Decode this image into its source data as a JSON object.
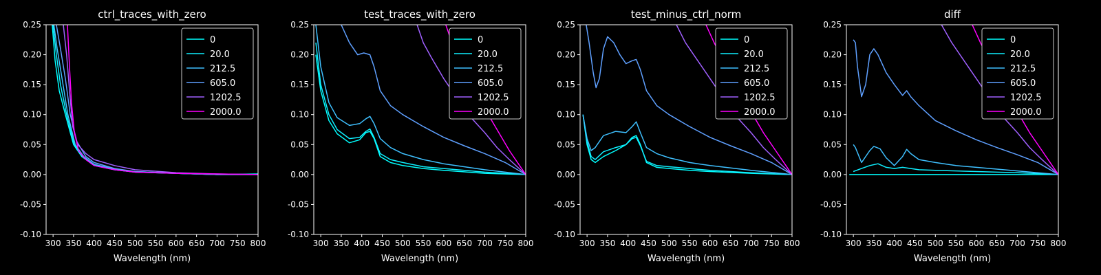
{
  "chart_data": [
    {
      "type": "line",
      "title": "ctrl_traces_with_zero",
      "xlabel": "Wavelength (nm)",
      "ylabel": "",
      "xlim": [
        283,
        800
      ],
      "ylim": [
        -0.1,
        0.25
      ],
      "xticks": [
        300,
        350,
        400,
        450,
        500,
        550,
        600,
        650,
        700,
        750,
        800
      ],
      "yticks": [
        -0.1,
        -0.05,
        0.0,
        0.05,
        0.1,
        0.15,
        0.2,
        0.25
      ],
      "legend_position": "top-right",
      "series": [
        {
          "name": "0",
          "color": "#00ffff",
          "x": [
            298,
            305,
            315,
            330,
            350,
            370,
            400,
            450,
            500,
            600,
            700,
            800
          ],
          "y": [
            0.25,
            0.19,
            0.14,
            0.1,
            0.05,
            0.03,
            0.015,
            0.008,
            0.004,
            0.002,
            0.0,
            0.001
          ]
        },
        {
          "name": "20.0",
          "color": "#0fefff",
          "x": [
            300,
            308,
            318,
            333,
            352,
            372,
            400,
            450,
            500,
            600,
            700,
            800
          ],
          "y": [
            0.25,
            0.2,
            0.15,
            0.1,
            0.05,
            0.03,
            0.016,
            0.008,
            0.004,
            0.002,
            0.0,
            0.0
          ]
        },
        {
          "name": "212.5",
          "color": "#3fc0ff",
          "x": [
            302,
            310,
            322,
            336,
            354,
            375,
            400,
            450,
            500,
            600,
            700,
            800
          ],
          "y": [
            0.25,
            0.21,
            0.16,
            0.1,
            0.05,
            0.03,
            0.017,
            0.009,
            0.005,
            0.002,
            0.0,
            0.0
          ]
        },
        {
          "name": "605.0",
          "color": "#5fa0ff",
          "x": [
            308,
            318,
            330,
            342,
            358,
            380,
            400,
            450,
            500,
            600,
            700,
            800
          ],
          "y": [
            0.25,
            0.21,
            0.16,
            0.1,
            0.055,
            0.03,
            0.02,
            0.01,
            0.005,
            0.002,
            0.0,
            0.0
          ]
        },
        {
          "name": "1202.5",
          "color": "#a060ff",
          "x": [
            325,
            333,
            340,
            348,
            360,
            380,
            400,
            450,
            500,
            600,
            700,
            800
          ],
          "y": [
            0.25,
            0.2,
            0.14,
            0.08,
            0.05,
            0.035,
            0.025,
            0.015,
            0.008,
            0.003,
            0.001,
            0.0
          ]
        },
        {
          "name": "2000.0",
          "color": "#ff00ff",
          "x": [
            335,
            340,
            345,
            352,
            362,
            380,
            400,
            450,
            500,
            600,
            700,
            800
          ],
          "y": [
            0.25,
            0.18,
            0.12,
            0.07,
            0.04,
            0.025,
            0.015,
            0.008,
            0.004,
            0.002,
            0.001,
            0.0
          ]
        }
      ]
    },
    {
      "type": "line",
      "title": "test_traces_with_zero",
      "xlabel": "Wavelength (nm)",
      "ylabel": "",
      "xlim": [
        283,
        800
      ],
      "ylim": [
        -0.1,
        0.25
      ],
      "xticks": [
        300,
        350,
        400,
        450,
        500,
        550,
        600,
        650,
        700,
        750,
        800
      ],
      "yticks": [
        -0.1,
        -0.05,
        0.0,
        0.05,
        0.1,
        0.15,
        0.2,
        0.25
      ],
      "legend_position": "top-right",
      "series": [
        {
          "name": "0",
          "color": "#00ffff",
          "x": [
            288,
            300,
            320,
            340,
            370,
            395,
            410,
            420,
            430,
            445,
            470,
            500,
            550,
            600,
            700,
            800
          ],
          "y": [
            0.2,
            0.14,
            0.09,
            0.068,
            0.053,
            0.058,
            0.07,
            0.072,
            0.06,
            0.03,
            0.02,
            0.015,
            0.01,
            0.007,
            0.002,
            0.0
          ]
        },
        {
          "name": "20.0",
          "color": "#0fefff",
          "x": [
            288,
            300,
            320,
            340,
            370,
            395,
            410,
            420,
            430,
            445,
            470,
            500,
            550,
            600,
            700,
            800
          ],
          "y": [
            0.22,
            0.15,
            0.1,
            0.075,
            0.06,
            0.062,
            0.072,
            0.076,
            0.062,
            0.035,
            0.025,
            0.02,
            0.013,
            0.01,
            0.004,
            0.0
          ]
        },
        {
          "name": "212.5",
          "color": "#3fc0ff",
          "x": [
            288,
            300,
            320,
            340,
            370,
            395,
            410,
            420,
            430,
            445,
            470,
            500,
            550,
            600,
            700,
            800
          ],
          "y": [
            0.25,
            0.18,
            0.12,
            0.095,
            0.082,
            0.085,
            0.093,
            0.097,
            0.085,
            0.06,
            0.045,
            0.035,
            0.025,
            0.018,
            0.008,
            0.0
          ]
        },
        {
          "name": "605.0",
          "color": "#5fa0ff",
          "x": [
            350,
            370,
            390,
            405,
            420,
            430,
            445,
            470,
            500,
            550,
            600,
            650,
            700,
            750,
            800
          ],
          "y": [
            0.25,
            0.22,
            0.2,
            0.203,
            0.2,
            0.18,
            0.14,
            0.115,
            0.1,
            0.08,
            0.062,
            0.048,
            0.035,
            0.02,
            0.0
          ]
        },
        {
          "name": "1202.5",
          "color": "#a060ff",
          "x": [
            535,
            550,
            570,
            600,
            630,
            660,
            700,
            730,
            760,
            800
          ],
          "y": [
            0.25,
            0.22,
            0.195,
            0.16,
            0.13,
            0.1,
            0.07,
            0.045,
            0.025,
            0.0
          ]
        },
        {
          "name": "2000.0",
          "color": "#ff00ff",
          "x": [
            605,
            620,
            650,
            680,
            700,
            730,
            760,
            780,
            800
          ],
          "y": [
            0.25,
            0.22,
            0.18,
            0.14,
            0.11,
            0.075,
            0.04,
            0.02,
            0.0
          ]
        }
      ]
    },
    {
      "type": "line",
      "title": "test_minus_ctrl_norm",
      "xlabel": "Wavelength (nm)",
      "ylabel": "",
      "xlim": [
        283,
        800
      ],
      "ylim": [
        -0.1,
        0.25
      ],
      "xticks": [
        300,
        350,
        400,
        450,
        500,
        550,
        600,
        650,
        700,
        750,
        800
      ],
      "yticks": [
        -0.1,
        -0.05,
        0.0,
        0.05,
        0.1,
        0.15,
        0.2,
        0.25
      ],
      "legend_position": "top-right",
      "series": [
        {
          "name": "0",
          "color": "#00ffff",
          "x": [
            290,
            300,
            310,
            320,
            340,
            370,
            395,
            410,
            420,
            430,
            445,
            470,
            500,
            550,
            600,
            700,
            800
          ],
          "y": [
            0.1,
            0.05,
            0.025,
            0.02,
            0.03,
            0.04,
            0.05,
            0.062,
            0.065,
            0.05,
            0.02,
            0.012,
            0.01,
            0.007,
            0.005,
            0.002,
            0.0
          ]
        },
        {
          "name": "20.0",
          "color": "#0fefff",
          "x": [
            290,
            300,
            310,
            320,
            340,
            370,
            395,
            410,
            420,
            430,
            445,
            470,
            500,
            550,
            600,
            700,
            800
          ],
          "y": [
            0.1,
            0.055,
            0.03,
            0.025,
            0.038,
            0.045,
            0.05,
            0.06,
            0.062,
            0.048,
            0.022,
            0.015,
            0.013,
            0.01,
            0.007,
            0.003,
            0.0
          ]
        },
        {
          "name": "212.5",
          "color": "#3fc0ff",
          "x": [
            290,
            300,
            310,
            320,
            340,
            370,
            395,
            410,
            420,
            430,
            445,
            470,
            500,
            550,
            600,
            700,
            800
          ],
          "y": [
            0.1,
            0.06,
            0.04,
            0.045,
            0.065,
            0.072,
            0.07,
            0.08,
            0.088,
            0.07,
            0.045,
            0.035,
            0.028,
            0.02,
            0.015,
            0.007,
            0.0
          ]
        },
        {
          "name": "605.0",
          "color": "#5fa0ff",
          "x": [
            298,
            305,
            315,
            322,
            330,
            340,
            350,
            365,
            380,
            395,
            410,
            420,
            430,
            445,
            470,
            500,
            550,
            600,
            650,
            700,
            750,
            800
          ],
          "y": [
            0.25,
            0.22,
            0.17,
            0.145,
            0.16,
            0.21,
            0.23,
            0.22,
            0.2,
            0.185,
            0.19,
            0.192,
            0.175,
            0.14,
            0.115,
            0.1,
            0.08,
            0.062,
            0.048,
            0.035,
            0.02,
            0.0
          ]
        },
        {
          "name": "1202.5",
          "color": "#a060ff",
          "x": [
            518,
            540,
            570,
            600,
            630,
            660,
            700,
            730,
            760,
            800
          ],
          "y": [
            0.25,
            0.22,
            0.19,
            0.16,
            0.13,
            0.1,
            0.07,
            0.045,
            0.025,
            0.0
          ]
        },
        {
          "name": "2000.0",
          "color": "#ff00ff",
          "x": [
            590,
            610,
            640,
            670,
            700,
            730,
            760,
            780,
            800
          ],
          "y": [
            0.25,
            0.22,
            0.18,
            0.14,
            0.105,
            0.07,
            0.04,
            0.02,
            0.0
          ]
        }
      ]
    },
    {
      "type": "line",
      "title": "diff",
      "xlabel": "Wavelength (nm)",
      "ylabel": "",
      "xlim": [
        283,
        800
      ],
      "ylim": [
        -0.1,
        0.25
      ],
      "xticks": [
        300,
        350,
        400,
        450,
        500,
        550,
        600,
        650,
        700,
        750,
        800
      ],
      "yticks": [
        -0.1,
        -0.05,
        0.0,
        0.05,
        0.1,
        0.15,
        0.2,
        0.25
      ],
      "legend_position": "top-right",
      "series": [
        {
          "name": "0",
          "color": "#00ffff",
          "x": [
            290,
            800
          ],
          "y": [
            0.0,
            0.0
          ]
        },
        {
          "name": "20.0",
          "color": "#0fefff",
          "x": [
            300,
            320,
            340,
            360,
            380,
            400,
            420,
            440,
            460,
            500,
            550,
            600,
            700,
            800
          ],
          "y": [
            0.005,
            0.01,
            0.015,
            0.018,
            0.012,
            0.01,
            0.012,
            0.01,
            0.008,
            0.007,
            0.006,
            0.005,
            0.003,
            0.0
          ]
        },
        {
          "name": "212.5",
          "color": "#3fc0ff",
          "x": [
            300,
            305,
            320,
            340,
            350,
            365,
            380,
            400,
            420,
            430,
            440,
            460,
            500,
            550,
            600,
            700,
            800
          ],
          "y": [
            0.05,
            0.045,
            0.02,
            0.04,
            0.047,
            0.043,
            0.028,
            0.015,
            0.03,
            0.042,
            0.035,
            0.025,
            0.02,
            0.015,
            0.012,
            0.006,
            0.0
          ]
        },
        {
          "name": "605.0",
          "color": "#5fa0ff",
          "x": [
            300,
            305,
            310,
            320,
            330,
            340,
            350,
            360,
            380,
            400,
            420,
            430,
            440,
            460,
            500,
            550,
            600,
            650,
            700,
            750,
            800
          ],
          "y": [
            0.225,
            0.22,
            0.18,
            0.13,
            0.15,
            0.2,
            0.21,
            0.2,
            0.17,
            0.15,
            0.132,
            0.14,
            0.13,
            0.115,
            0.09,
            0.073,
            0.058,
            0.045,
            0.033,
            0.02,
            0.0
          ]
        },
        {
          "name": "1202.5",
          "color": "#a060ff",
          "x": [
            515,
            540,
            570,
            600,
            630,
            660,
            700,
            730,
            760,
            800
          ],
          "y": [
            0.25,
            0.22,
            0.19,
            0.16,
            0.13,
            0.1,
            0.07,
            0.045,
            0.025,
            0.0
          ]
        },
        {
          "name": "2000.0",
          "color": "#ff00ff",
          "x": [
            590,
            610,
            640,
            670,
            700,
            730,
            760,
            780,
            800
          ],
          "y": [
            0.25,
            0.22,
            0.18,
            0.14,
            0.105,
            0.07,
            0.04,
            0.02,
            0.0
          ]
        }
      ]
    }
  ]
}
